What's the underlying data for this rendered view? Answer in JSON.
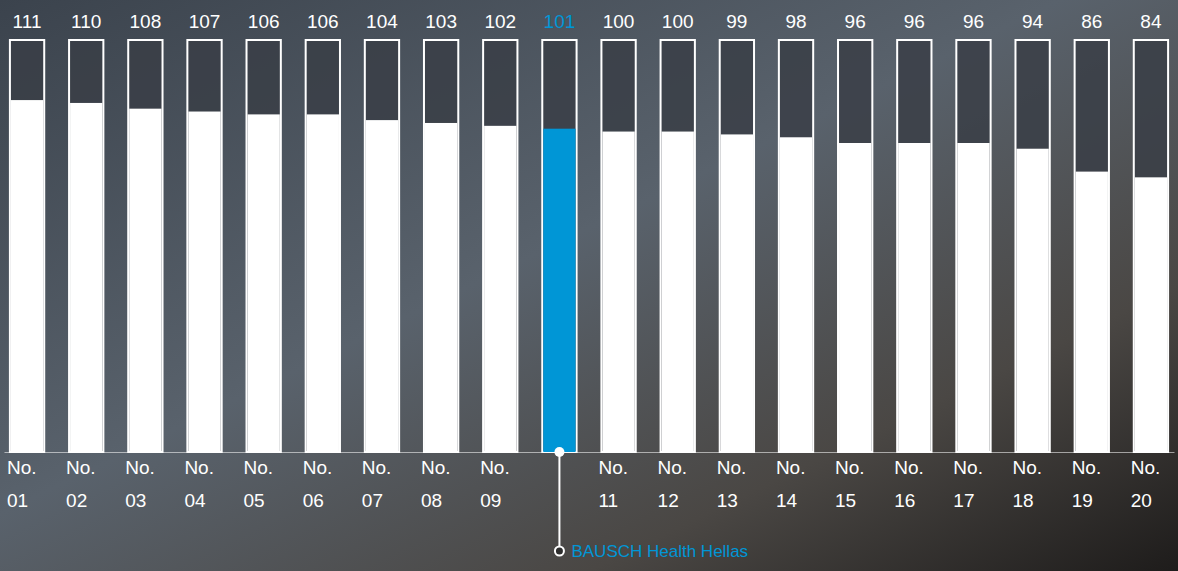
{
  "chart_data": {
    "type": "bar",
    "categories": [
      "No. 01",
      "No. 02",
      "No. 03",
      "No. 04",
      "No. 05",
      "No. 06",
      "No. 07",
      "No. 08",
      "No. 09",
      null,
      "No. 11",
      "No. 12",
      "No. 13",
      "No. 14",
      "No. 15",
      "No. 16",
      "No. 17",
      "No. 18",
      "No. 19",
      "No. 20"
    ],
    "values": [
      111,
      110,
      108,
      107,
      106,
      106,
      104,
      103,
      102,
      101,
      100,
      100,
      99,
      98,
      96,
      96,
      96,
      94,
      86,
      84
    ],
    "colors": [
      "#ffffff",
      "#ffffff",
      "#ffffff",
      "#ffffff",
      "#ffffff",
      "#ffffff",
      "#ffffff",
      "#ffffff",
      "#ffffff",
      "#0096d6",
      "#ffffff",
      "#ffffff",
      "#ffffff",
      "#ffffff",
      "#ffffff",
      "#ffffff",
      "#ffffff",
      "#ffffff",
      "#ffffff",
      "#ffffff"
    ],
    "ylim": [
      -12,
      132
    ],
    "data_labels": true,
    "tick_labels": "x",
    "grid": false,
    "annotation": "BAUSCH Health Hellas"
  }
}
